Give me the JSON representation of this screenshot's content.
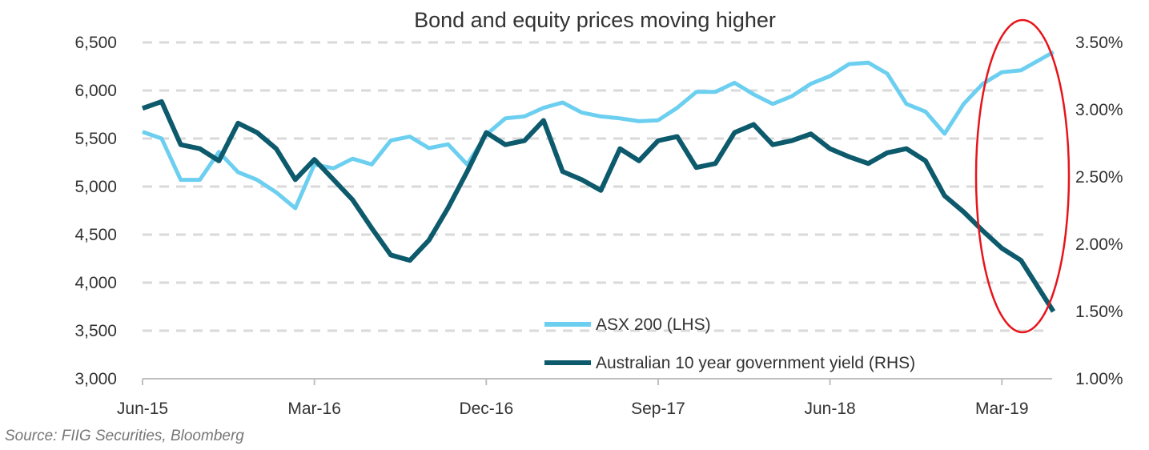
{
  "chart_data": {
    "type": "line",
    "title": "Bond and equity prices moving higher",
    "x": [
      "Jun-15",
      "Jul-15",
      "Aug-15",
      "Sep-15",
      "Oct-15",
      "Nov-15",
      "Dec-15",
      "Jan-16",
      "Feb-16",
      "Mar-16",
      "Apr-16",
      "May-16",
      "Jun-16",
      "Jul-16",
      "Aug-16",
      "Sep-16",
      "Oct-16",
      "Nov-16",
      "Dec-16",
      "Jan-17",
      "Feb-17",
      "Mar-17",
      "Apr-17",
      "May-17",
      "Jun-17",
      "Jul-17",
      "Aug-17",
      "Sep-17",
      "Oct-17",
      "Nov-17",
      "Dec-17",
      "Jan-18",
      "Feb-18",
      "Mar-18",
      "Apr-18",
      "May-18",
      "Jun-18",
      "Jul-18",
      "Aug-18",
      "Sep-18",
      "Oct-18",
      "Nov-18",
      "Dec-18",
      "Jan-19",
      "Feb-19",
      "Mar-19",
      "Apr-19",
      "May-19"
    ],
    "x_tick_labels": [
      "Jun-15",
      "Mar-16",
      "Dec-16",
      "Sep-17",
      "Jun-18",
      "Mar-19"
    ],
    "series": [
      {
        "name": "ASX 200 (LHS)",
        "axis": "left",
        "color": "#6dcff0",
        "values": [
          5570,
          5500,
          5070,
          5070,
          5360,
          5150,
          5070,
          4940,
          4775,
          5230,
          5190,
          5290,
          5230,
          5480,
          5520,
          5400,
          5440,
          5230,
          5540,
          5710,
          5730,
          5820,
          5875,
          5770,
          5730,
          5710,
          5680,
          5690,
          5820,
          5985,
          5985,
          6080,
          5960,
          5860,
          5940,
          6070,
          6150,
          6275,
          6290,
          6175,
          5860,
          5780,
          5550,
          5860,
          6070,
          6190,
          6210,
          6400
        ]
      },
      {
        "name": "Australian 10 year government yield (RHS)",
        "axis": "right",
        "color": "#0c5a6c",
        "values": [
          3.01,
          3.06,
          2.74,
          2.71,
          2.62,
          2.9,
          2.83,
          2.71,
          2.48,
          2.63,
          2.48,
          2.33,
          2.12,
          1.92,
          1.88,
          2.03,
          2.27,
          2.54,
          2.83,
          2.74,
          2.77,
          2.92,
          2.54,
          2.48,
          2.4,
          2.71,
          2.62,
          2.77,
          2.8,
          2.57,
          2.6,
          2.83,
          2.89,
          2.74,
          2.77,
          2.82,
          2.71,
          2.65,
          2.6,
          2.68,
          2.71,
          2.62,
          2.36,
          2.24,
          2.1,
          1.97,
          1.88,
          1.5
        ]
      }
    ],
    "y_left": {
      "ylim": [
        3000,
        6500
      ],
      "ticks": [
        "3,000",
        "3,500",
        "4,000",
        "4,500",
        "5,000",
        "5,500",
        "6,000",
        "6,500"
      ]
    },
    "y_right": {
      "ylim": [
        1.0,
        3.5
      ],
      "ticks": [
        "1.00%",
        "1.50%",
        "2.00%",
        "2.50%",
        "3.00%",
        "3.50%"
      ]
    },
    "grid": "horizontal dashed",
    "legend": "bottom-center",
    "annotation": {
      "shape": "ellipse",
      "color": "#e8141b",
      "highlights": "Mar-19 onward"
    }
  },
  "source": "Source: FIIG Securities, Bloomberg"
}
